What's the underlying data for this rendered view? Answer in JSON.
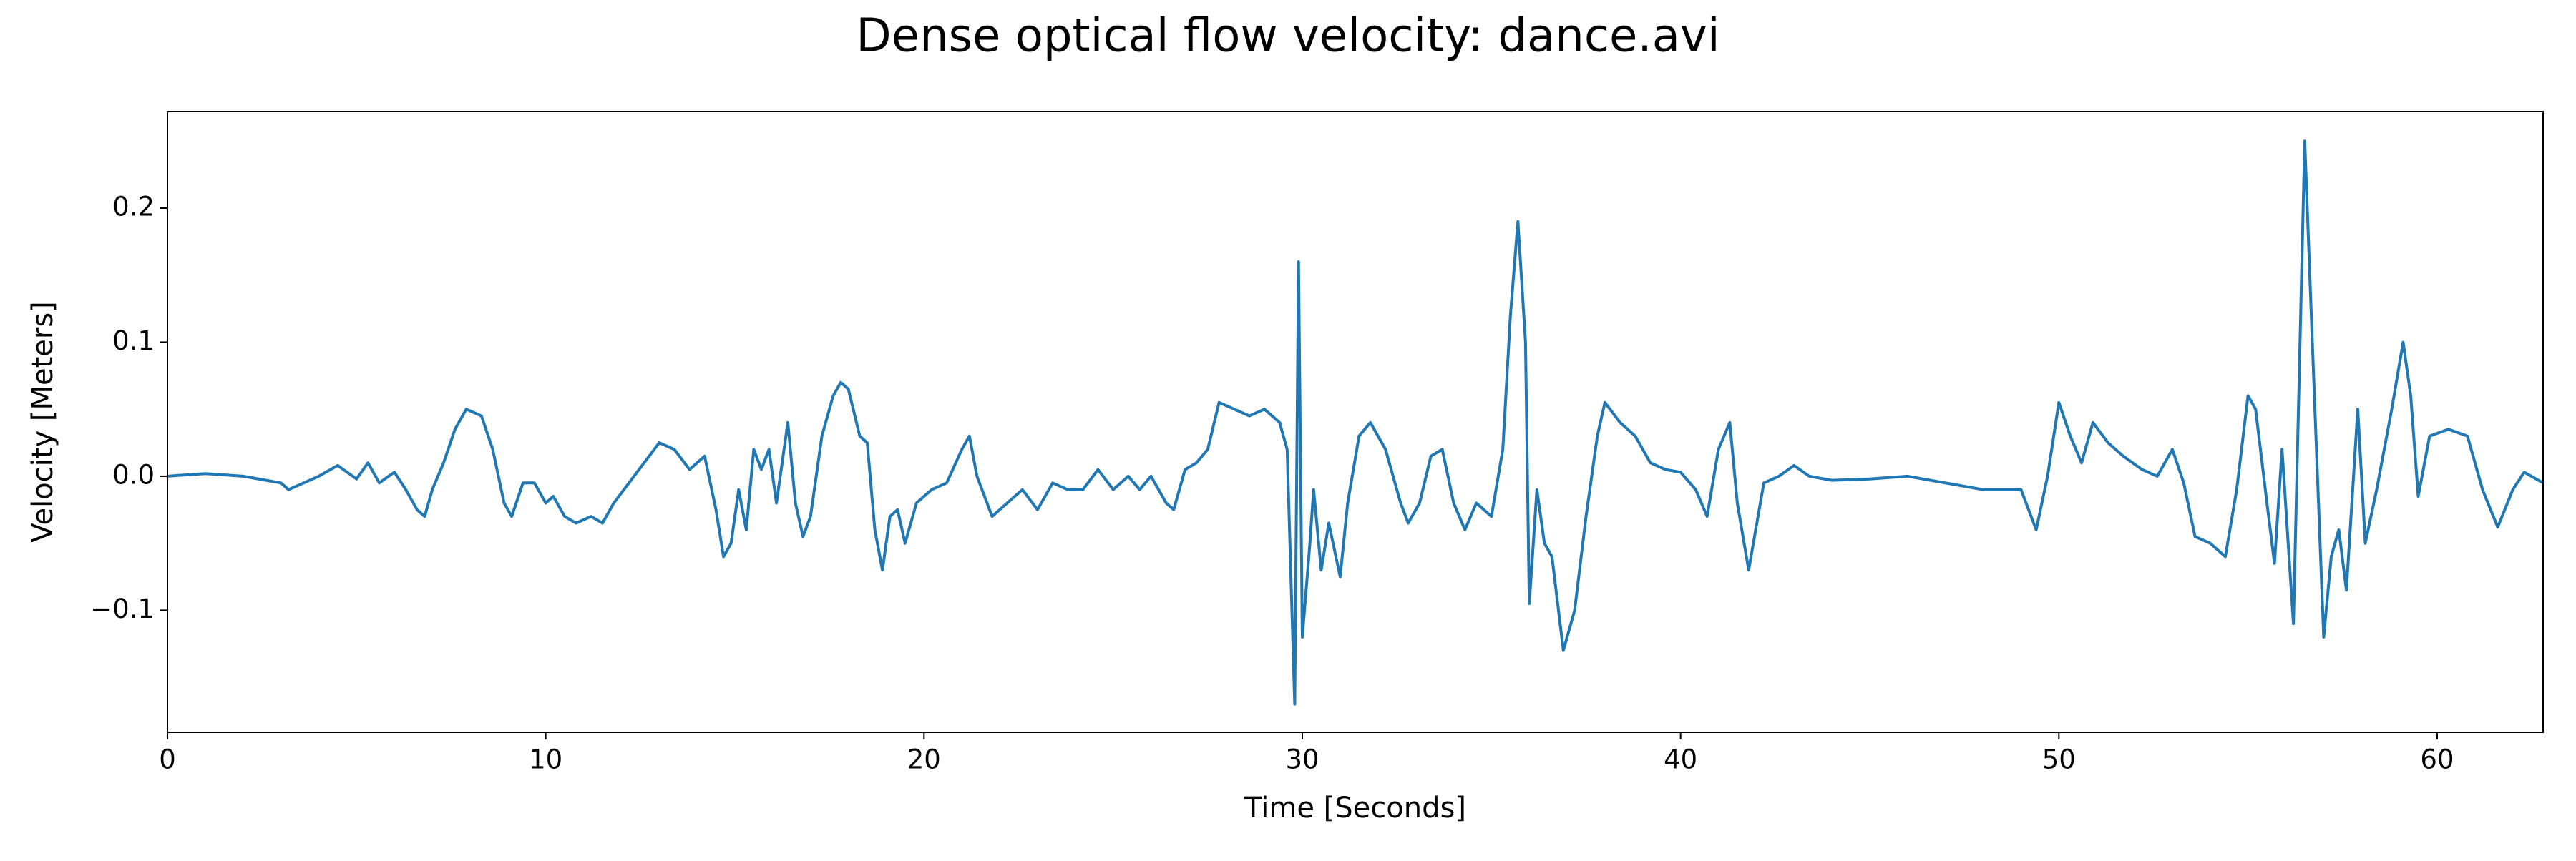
{
  "chart_data": {
    "type": "line",
    "title": "Dense optical flow velocity: dance.avi",
    "x_label": "Time [Seconds]",
    "y_label": "Velocity [Meters]",
    "xlim": [
      0,
      62.8
    ],
    "ylim": [
      -0.191,
      0.272
    ],
    "xticks": [
      0,
      10,
      20,
      30,
      40,
      50,
      60
    ],
    "yticks": [
      {
        "value": -0.1,
        "label": "−0.1"
      },
      {
        "value": 0,
        "label": "0.0"
      },
      0.1,
      0.2
    ],
    "series": [
      {
        "color": "#1f77b4",
        "x": [
          0,
          1,
          2,
          3,
          3.2,
          4,
          4.5,
          5,
          5.3,
          5.6,
          6,
          6.3,
          6.6,
          6.8,
          7.0,
          7.3,
          7.6,
          7.9,
          8.3,
          8.6,
          8.9,
          9.1,
          9.4,
          9.7,
          10,
          10.2,
          10.5,
          10.8,
          11.2,
          11.5,
          11.8,
          12.2,
          12.6,
          13,
          13.4,
          13.8,
          14.2,
          14.5,
          14.7,
          14.9,
          15.1,
          15.3,
          15.5,
          15.7,
          15.9,
          16.1,
          16.4,
          16.6,
          16.8,
          17.0,
          17.3,
          17.6,
          17.8,
          18.0,
          18.3,
          18.5,
          18.7,
          18.9,
          19.1,
          19.3,
          19.5,
          19.8,
          20.2,
          20.6,
          21.0,
          21.2,
          21.4,
          21.8,
          22.2,
          22.6,
          23,
          23.4,
          23.8,
          24.2,
          24.6,
          25.0,
          25.4,
          25.7,
          26,
          26.4,
          26.6,
          26.9,
          27.2,
          27.5,
          27.8,
          28.2,
          28.6,
          29.0,
          29.4,
          29.6,
          29.8,
          29.9,
          30.0,
          30.2,
          30.3,
          30.5,
          30.7,
          31.0,
          31.2,
          31.5,
          31.8,
          32.2,
          32.6,
          32.8,
          33.1,
          33.4,
          33.7,
          34.0,
          34.3,
          34.6,
          35.0,
          35.3,
          35.5,
          35.7,
          35.9,
          36.0,
          36.2,
          36.4,
          36.6,
          36.9,
          37.2,
          37.5,
          37.8,
          38.0,
          38.4,
          38.8,
          39.2,
          39.6,
          40.0,
          40.4,
          40.7,
          41.0,
          41.3,
          41.5,
          41.8,
          42.2,
          42.6,
          43.0,
          43.4,
          44,
          45,
          46,
          47,
          48,
          49.0,
          49.4,
          49.7,
          50.0,
          50.3,
          50.6,
          50.9,
          51.3,
          51.7,
          52.2,
          52.6,
          53.0,
          53.3,
          53.6,
          54.0,
          54.4,
          54.7,
          55.0,
          55.2,
          55.5,
          55.7,
          55.9,
          56.2,
          56.5,
          56.7,
          57.0,
          57.2,
          57.4,
          57.6,
          57.9,
          58.1,
          58.4,
          58.8,
          59.1,
          59.3,
          59.5,
          59.8,
          60.3,
          60.8,
          61.2,
          61.6,
          62.0,
          62.3,
          62.8
        ],
        "values": [
          0,
          0.002,
          0,
          -0.005,
          -0.01,
          0,
          0.008,
          -0.002,
          0.01,
          -0.005,
          0.003,
          -0.01,
          -0.025,
          -0.03,
          -0.01,
          0.01,
          0.035,
          0.05,
          0.045,
          0.02,
          -0.02,
          -0.03,
          -0.005,
          -0.005,
          -0.02,
          -0.015,
          -0.03,
          -0.035,
          -0.03,
          -0.035,
          -0.02,
          -0.005,
          0.01,
          0.025,
          0.02,
          0.005,
          0.015,
          -0.025,
          -0.06,
          -0.05,
          -0.01,
          -0.04,
          0.02,
          0.005,
          0.02,
          -0.02,
          0.04,
          -0.02,
          -0.045,
          -0.03,
          0.03,
          0.06,
          0.07,
          0.065,
          0.03,
          0.025,
          -0.04,
          -0.07,
          -0.03,
          -0.025,
          -0.05,
          -0.02,
          -0.01,
          -0.005,
          0.02,
          0.03,
          0,
          -0.03,
          -0.02,
          -0.01,
          -0.025,
          -0.005,
          -0.01,
          -0.01,
          0.005,
          -0.01,
          0,
          -0.01,
          0,
          -0.02,
          -0.025,
          0.005,
          0.01,
          0.02,
          0.055,
          0.05,
          0.045,
          0.05,
          0.04,
          0.02,
          -0.17,
          0.16,
          -0.12,
          -0.05,
          -0.01,
          -0.07,
          -0.035,
          -0.075,
          -0.02,
          0.03,
          0.04,
          0.02,
          -0.02,
          -0.035,
          -0.02,
          0.015,
          0.02,
          -0.02,
          -0.04,
          -0.02,
          -0.03,
          0.02,
          0.12,
          0.19,
          0.1,
          -0.095,
          -0.01,
          -0.05,
          -0.06,
          -0.13,
          -0.1,
          -0.03,
          0.03,
          0.055,
          0.04,
          0.03,
          0.01,
          0.005,
          0.003,
          -0.01,
          -0.03,
          0.02,
          0.04,
          -0.02,
          -0.07,
          -0.005,
          0,
          0.008,
          0,
          -0.003,
          -0.002,
          0,
          -0.005,
          -0.01,
          -0.01,
          -0.04,
          0,
          0.055,
          0.03,
          0.01,
          0.04,
          0.025,
          0.015,
          0.005,
          0,
          0.02,
          -0.005,
          -0.045,
          -0.05,
          -0.06,
          -0.01,
          0.06,
          0.05,
          -0.02,
          -0.065,
          0.02,
          -0.11,
          0.25,
          0.1,
          -0.12,
          -0.06,
          -0.04,
          -0.085,
          0.05,
          -0.05,
          -0.01,
          0.05,
          0.1,
          0.06,
          -0.015,
          0.03,
          0.035,
          0.03,
          -0.01,
          -0.038,
          -0.01,
          0.003,
          -0.005
        ]
      }
    ]
  }
}
